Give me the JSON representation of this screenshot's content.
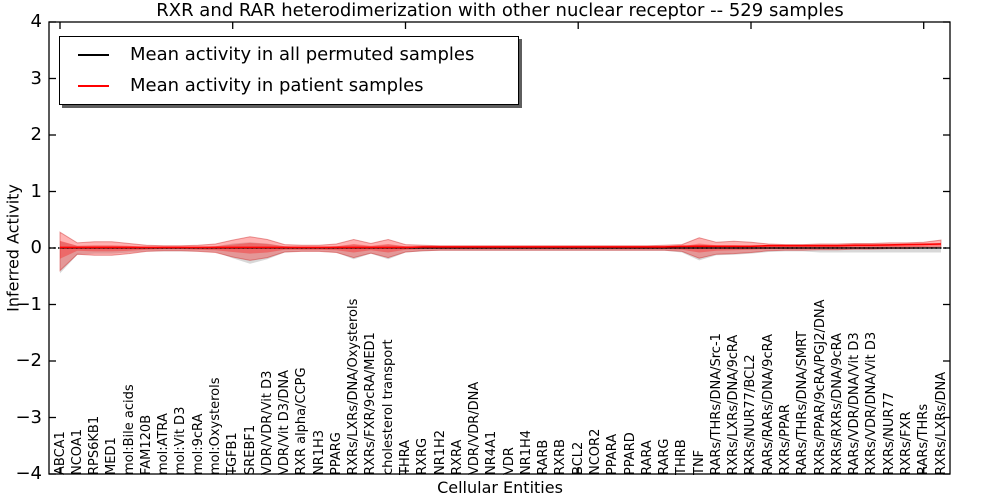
{
  "chart_data": {
    "type": "line",
    "title": "RXR and RAR heterodimerization with other nuclear receptor -- 529 samples",
    "xlabel": "Cellular Entities",
    "ylabel": "Inferred Activity",
    "ylim": [
      -4,
      4
    ],
    "yticks": [
      4,
      3,
      2,
      1,
      0,
      -1,
      -2,
      -3,
      -4
    ],
    "xtick_positions": [
      0,
      10,
      20,
      30,
      40,
      50
    ],
    "grid": false,
    "legend_position": "upper left",
    "categories": [
      "ABCA1",
      "NCOA1",
      "RPS6KB1",
      "MED1",
      "mol:Bile acids",
      "FAM120B",
      "mol:ATRA",
      "mol:Vit D3",
      "mol:9cRA",
      "mol:Oxysterols",
      "TGFB1",
      "SREBF1",
      "VDR/VDR/Vit D3",
      "VDR/Vit D3/DNA",
      "RXR alpha/CCPG",
      "NR1H3",
      "PPARG",
      "RXRs/LXRs/DNA/Oxysterols",
      "RXRs/FXR/9cRA/MED1",
      "cholesterol transport",
      "THRA",
      "RXRG",
      "NR1H2",
      "RXRA",
      "VDR/VDR/DNA",
      "NR4A1",
      "VDR",
      "NR1H4",
      "RARB",
      "RXRB",
      "BCL2",
      "NCOR2",
      "PPARA",
      "PPARD",
      "RARA",
      "RARG",
      "THRB",
      "TNF",
      "RARs/THRs/DNA/Src-1",
      "RXRs/LXRs/DNA/9cRA",
      "RXRs/NUR77/BCL2",
      "RARs/RARs/DNA/9cRA",
      "RXRs/PPAR",
      "RARs/THRs/DNA/SMRT",
      "RXRs/PPAR/9cRA/PGJ2/DNA",
      "RXRs/RXRs/DNA/9cRA",
      "RARs/VDR/DNA/Vit D3",
      "RXRs/VDR/DNA/Vit D3",
      "RXRs/NUR77",
      "RXRs/FXR",
      "RARs/THRs",
      "RXRs/LXRs/DNA"
    ],
    "series": [
      {
        "name": "Mean activity in all permuted samples",
        "color": "#000000",
        "style": "solid",
        "width": 1.3,
        "values": [
          0,
          0,
          0,
          0,
          0,
          0,
          0,
          0,
          0,
          0,
          0,
          0,
          0,
          0,
          0,
          0,
          0,
          0,
          0,
          0,
          0,
          0,
          0,
          0,
          0,
          0,
          0,
          0,
          0,
          0,
          0,
          0,
          0,
          0,
          0,
          0,
          0,
          0,
          0,
          0,
          0,
          0,
          0,
          0,
          0,
          0,
          0,
          0,
          0,
          0,
          0,
          0
        ]
      },
      {
        "name": "Mean activity in patient samples",
        "color": "#ff0000",
        "style": "solid",
        "width": 1.6,
        "values": [
          0.01,
          0.01,
          0.01,
          0.01,
          0.01,
          0.01,
          0.01,
          0.01,
          0.01,
          0.01,
          0.01,
          0.01,
          0.01,
          0.01,
          0.01,
          0.01,
          0.01,
          0.01,
          0.01,
          0.01,
          0.01,
          0.02,
          0.02,
          0.02,
          0.02,
          0.02,
          0.02,
          0.02,
          0.02,
          0.02,
          0.02,
          0.02,
          0.02,
          0.02,
          0.02,
          0.02,
          0.03,
          0.03,
          0.03,
          0.03,
          0.03,
          0.04,
          0.04,
          0.04,
          0.04,
          0.04,
          0.05,
          0.05,
          0.055,
          0.06,
          0.065,
          0.07
        ]
      }
    ],
    "zero_line": {
      "y": 0,
      "style": "dotted",
      "color": "#000000"
    },
    "bands": [
      {
        "name": "permuted-band",
        "color": "#999999",
        "opacity": 0.38,
        "upper": [
          0.12,
          0.04,
          0.04,
          0.04,
          0.03,
          0.02,
          0.02,
          0.02,
          0.02,
          0.03,
          0.08,
          0.1,
          0.08,
          0.03,
          0.02,
          0.02,
          0.03,
          0.06,
          0.03,
          0.06,
          0.03,
          0.02,
          0.02,
          0.02,
          0.02,
          0.02,
          0.02,
          0.02,
          0.02,
          0.02,
          0.02,
          0.02,
          0.02,
          0.02,
          0.02,
          0.02,
          0.03,
          0.06,
          0.04,
          0.04,
          0.03,
          0.03,
          0.03,
          0.03,
          0.03,
          0.03,
          0.03,
          0.03,
          0.03,
          0.03,
          0.03,
          0.03
        ],
        "lower": [
          -0.45,
          -0.12,
          -0.1,
          -0.1,
          -0.08,
          -0.06,
          -0.06,
          -0.06,
          -0.06,
          -0.07,
          -0.18,
          -0.28,
          -0.2,
          -0.08,
          -0.06,
          -0.06,
          -0.08,
          -0.2,
          -0.1,
          -0.2,
          -0.08,
          -0.06,
          -0.05,
          -0.05,
          -0.05,
          -0.05,
          -0.05,
          -0.05,
          -0.05,
          -0.05,
          -0.05,
          -0.05,
          -0.05,
          -0.05,
          -0.05,
          -0.05,
          -0.08,
          -0.22,
          -0.13,
          -0.12,
          -0.1,
          -0.07,
          -0.06,
          -0.06,
          -0.08,
          -0.08,
          -0.08,
          -0.08,
          -0.08,
          -0.08,
          -0.08,
          -0.08
        ]
      },
      {
        "name": "patient-band-outer",
        "color": "#ff0000",
        "opacity": 0.3,
        "upper": [
          0.28,
          0.09,
          0.11,
          0.11,
          0.08,
          0.05,
          0.04,
          0.04,
          0.05,
          0.07,
          0.14,
          0.2,
          0.15,
          0.06,
          0.05,
          0.05,
          0.07,
          0.15,
          0.08,
          0.15,
          0.06,
          0.05,
          0.04,
          0.04,
          0.04,
          0.04,
          0.04,
          0.04,
          0.04,
          0.04,
          0.04,
          0.04,
          0.04,
          0.04,
          0.04,
          0.05,
          0.06,
          0.18,
          0.1,
          0.12,
          0.1,
          0.07,
          0.06,
          0.06,
          0.07,
          0.07,
          0.08,
          0.08,
          0.09,
          0.09,
          0.1,
          0.14
        ],
        "lower": [
          -0.4,
          -0.11,
          -0.13,
          -0.13,
          -0.1,
          -0.06,
          -0.05,
          -0.05,
          -0.06,
          -0.08,
          -0.16,
          -0.22,
          -0.17,
          -0.07,
          -0.06,
          -0.06,
          -0.08,
          -0.17,
          -0.09,
          -0.17,
          -0.07,
          -0.05,
          -0.04,
          -0.04,
          -0.04,
          -0.04,
          -0.04,
          -0.04,
          -0.04,
          -0.04,
          -0.04,
          -0.04,
          -0.04,
          -0.04,
          -0.04,
          -0.04,
          -0.06,
          -0.18,
          -0.11,
          -0.1,
          -0.08,
          -0.05,
          -0.04,
          -0.04,
          -0.03,
          -0.03,
          -0.02,
          -0.02,
          -0.01,
          -0.01,
          0.0,
          0.02
        ]
      },
      {
        "name": "patient-band-inner",
        "color": "#ff0000",
        "opacity": 0.3,
        "upper": [
          0.13,
          0.04,
          0.05,
          0.05,
          0.04,
          0.02,
          0.02,
          0.02,
          0.02,
          0.03,
          0.06,
          0.09,
          0.07,
          0.03,
          0.02,
          0.02,
          0.03,
          0.07,
          0.04,
          0.07,
          0.03,
          0.02,
          0.02,
          0.02,
          0.02,
          0.02,
          0.02,
          0.02,
          0.02,
          0.02,
          0.02,
          0.02,
          0.02,
          0.02,
          0.02,
          0.02,
          0.03,
          0.08,
          0.05,
          0.05,
          0.04,
          0.03,
          0.03,
          0.03,
          0.03,
          0.04,
          0.04,
          0.04,
          0.05,
          0.05,
          0.06,
          0.09
        ],
        "lower": [
          -0.19,
          -0.05,
          -0.06,
          -0.06,
          -0.05,
          -0.03,
          -0.02,
          -0.02,
          -0.03,
          -0.04,
          -0.07,
          -0.1,
          -0.08,
          -0.03,
          -0.03,
          -0.03,
          -0.04,
          -0.08,
          -0.04,
          -0.08,
          -0.03,
          -0.02,
          -0.02,
          -0.02,
          -0.02,
          -0.02,
          -0.02,
          -0.02,
          -0.02,
          -0.02,
          -0.02,
          -0.02,
          -0.02,
          -0.02,
          -0.02,
          -0.02,
          -0.03,
          -0.08,
          -0.05,
          -0.04,
          -0.03,
          -0.02,
          -0.02,
          -0.02,
          -0.01,
          -0.01,
          0.0,
          0.0,
          0.01,
          0.01,
          0.02,
          0.04
        ]
      }
    ]
  },
  "legend": {
    "items": [
      {
        "label": "Mean activity in all permuted samples",
        "color": "#000000"
      },
      {
        "label": "Mean activity in patient samples",
        "color": "#ff0000"
      }
    ]
  },
  "style_colors": {
    "axes": "#000000",
    "background": "#ffffff",
    "band_edge": "rgba(205,40,40,0.45)"
  }
}
